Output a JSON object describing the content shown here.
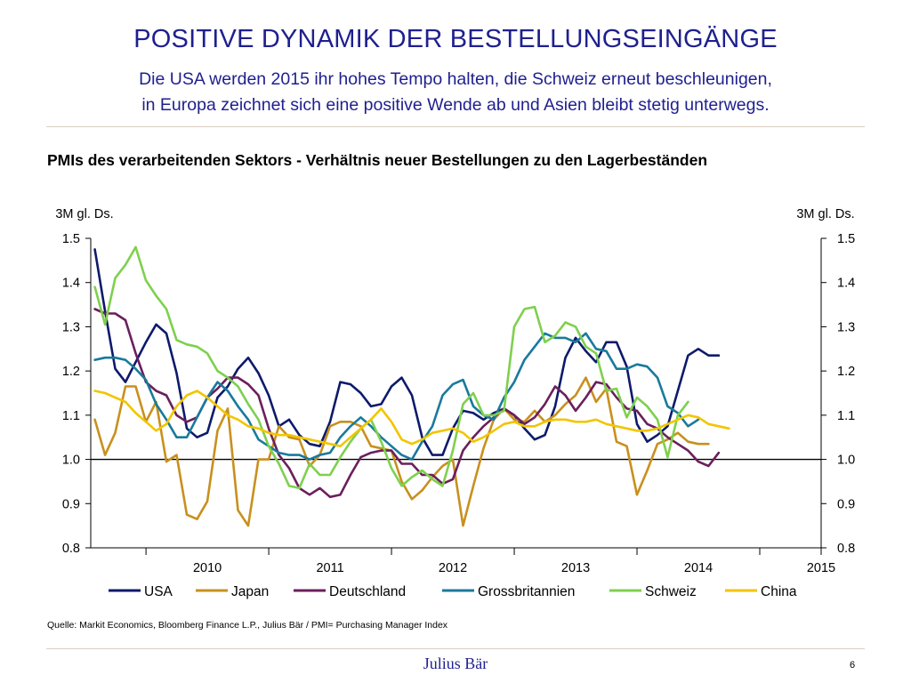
{
  "header": {
    "title": "POSITIVE DYNAMIK DER BESTELLUNGSEINGÄNGE",
    "subtitle_line1": "Die USA werden 2015 ihr hohes Tempo halten, die Schweiz erneut beschleunigen,",
    "subtitle_line2": "in Europa zeichnet sich eine positive Wende ab und Asien bleibt stetig unterwegs."
  },
  "footer": {
    "source": "Quelle: Markit Economics, Bloomberg Finance L.P., Julius Bär / PMI= Purchasing Manager Index",
    "brand": "Julius Bär",
    "page_number": "6"
  },
  "chart_data": {
    "type": "line",
    "title": "PMIs des verarbeitenden Sektors - Verhältnis neuer Bestellungen zu den Lagerbeständen",
    "ylabel_left": "3M gl. Ds.",
    "ylabel_right": "3M gl. Ds.",
    "ylim": [
      0.8,
      1.5
    ],
    "yticks": [
      "0.8",
      "0.9",
      "1.0",
      "1.1",
      "1.2",
      "1.3",
      "1.4",
      "1.5"
    ],
    "xlim": [
      2009.55,
      2015.5
    ],
    "xticks": [
      "2010",
      "2011",
      "2012",
      "2013",
      "2014",
      "2015"
    ],
    "x_start": 2009.583,
    "x_step": 0.08333,
    "reference_line": 1.0,
    "legend_position": "bottom",
    "series": [
      {
        "name": "USA",
        "color": "#0d1a6b",
        "values": [
          1.475,
          1.335,
          1.205,
          1.175,
          1.22,
          1.265,
          1.305,
          1.285,
          1.195,
          1.07,
          1.05,
          1.06,
          1.14,
          1.165,
          1.205,
          1.23,
          1.195,
          1.145,
          1.075,
          1.09,
          1.055,
          1.035,
          1.03,
          1.085,
          1.175,
          1.17,
          1.15,
          1.12,
          1.125,
          1.165,
          1.185,
          1.145,
          1.05,
          1.01,
          1.01,
          1.07,
          1.11,
          1.105,
          1.09,
          1.105,
          1.115,
          1.1,
          1.07,
          1.045,
          1.055,
          1.12,
          1.23,
          1.275,
          1.245,
          1.22,
          1.265,
          1.265,
          1.21,
          1.08,
          1.04,
          1.055,
          1.075,
          1.155,
          1.235,
          1.25,
          1.235,
          1.235
        ]
      },
      {
        "name": "Japan",
        "color": "#c8901e",
        "values": [
          1.09,
          1.01,
          1.06,
          1.165,
          1.165,
          1.085,
          1.13,
          0.995,
          1.01,
          0.875,
          0.865,
          0.905,
          1.065,
          1.115,
          0.885,
          0.85,
          1.0,
          1.0,
          1.075,
          1.05,
          1.045,
          0.985,
          1.01,
          1.075,
          1.085,
          1.085,
          1.075,
          1.03,
          1.025,
          1.02,
          0.95,
          0.91,
          0.93,
          0.96,
          0.985,
          1.0,
          0.85,
          0.94,
          1.025,
          1.09,
          1.115,
          1.09,
          1.085,
          1.11,
          1.085,
          1.1,
          1.125,
          1.145,
          1.185,
          1.13,
          1.16,
          1.04,
          1.03,
          0.92,
          0.975,
          1.035,
          1.045,
          1.06,
          1.04,
          1.035,
          1.035
        ]
      },
      {
        "name": "Deutschland",
        "color": "#6b1f5c",
        "values": [
          1.34,
          1.33,
          1.33,
          1.315,
          1.24,
          1.175,
          1.155,
          1.145,
          1.1,
          1.085,
          1.095,
          1.14,
          1.16,
          1.185,
          1.185,
          1.17,
          1.145,
          1.07,
          1.01,
          0.98,
          0.935,
          0.92,
          0.935,
          0.915,
          0.92,
          0.965,
          1.005,
          1.015,
          1.02,
          1.02,
          0.99,
          0.99,
          0.965,
          0.965,
          0.945,
          0.955,
          1.02,
          1.05,
          1.075,
          1.095,
          1.115,
          1.1,
          1.08,
          1.095,
          1.125,
          1.165,
          1.145,
          1.11,
          1.14,
          1.175,
          1.17,
          1.14,
          1.115,
          1.11,
          1.08,
          1.07,
          1.05,
          1.035,
          1.02,
          0.995,
          0.985,
          1.015
        ]
      },
      {
        "name": "Grossbritannien",
        "color": "#197a9c",
        "values": [
          1.225,
          1.23,
          1.23,
          1.225,
          1.205,
          1.18,
          1.125,
          1.09,
          1.05,
          1.05,
          1.095,
          1.14,
          1.175,
          1.155,
          1.12,
          1.09,
          1.045,
          1.03,
          1.015,
          1.01,
          1.01,
          1.0,
          1.01,
          1.015,
          1.05,
          1.075,
          1.095,
          1.075,
          1.05,
          1.03,
          1.01,
          1.0,
          1.04,
          1.075,
          1.145,
          1.17,
          1.18,
          1.12,
          1.1,
          1.09,
          1.14,
          1.175,
          1.225,
          1.255,
          1.285,
          1.275,
          1.275,
          1.265,
          1.285,
          1.25,
          1.245,
          1.205,
          1.205,
          1.215,
          1.21,
          1.185,
          1.12,
          1.105,
          1.075,
          1.09
        ]
      },
      {
        "name": "Schweiz",
        "color": "#7ed04e",
        "values": [
          1.39,
          1.305,
          1.41,
          1.44,
          1.48,
          1.405,
          1.37,
          1.34,
          1.27,
          1.26,
          1.255,
          1.24,
          1.2,
          1.185,
          1.165,
          1.125,
          1.09,
          1.03,
          0.99,
          0.94,
          0.935,
          0.99,
          0.965,
          0.965,
          1.005,
          1.04,
          1.07,
          1.09,
          1.04,
          0.98,
          0.94,
          0.96,
          0.975,
          0.955,
          0.94,
          1.02,
          1.125,
          1.15,
          1.1,
          1.1,
          1.11,
          1.3,
          1.34,
          1.345,
          1.265,
          1.28,
          1.31,
          1.3,
          1.255,
          1.24,
          1.155,
          1.16,
          1.095,
          1.14,
          1.12,
          1.09,
          1.005,
          1.1,
          1.13
        ]
      },
      {
        "name": "China",
        "color": "#f2c500",
        "values": [
          1.155,
          1.15,
          1.14,
          1.13,
          1.105,
          1.085,
          1.065,
          1.08,
          1.12,
          1.145,
          1.155,
          1.14,
          1.12,
          1.1,
          1.09,
          1.075,
          1.07,
          1.06,
          1.055,
          1.055,
          1.05,
          1.045,
          1.04,
          1.035,
          1.03,
          1.05,
          1.07,
          1.09,
          1.115,
          1.085,
          1.045,
          1.035,
          1.045,
          1.06,
          1.065,
          1.07,
          1.06,
          1.04,
          1.05,
          1.065,
          1.08,
          1.085,
          1.075,
          1.075,
          1.085,
          1.09,
          1.09,
          1.085,
          1.085,
          1.09,
          1.08,
          1.075,
          1.07,
          1.065,
          1.065,
          1.07,
          1.08,
          1.09,
          1.1,
          1.095,
          1.08,
          1.075,
          1.07
        ]
      }
    ]
  }
}
